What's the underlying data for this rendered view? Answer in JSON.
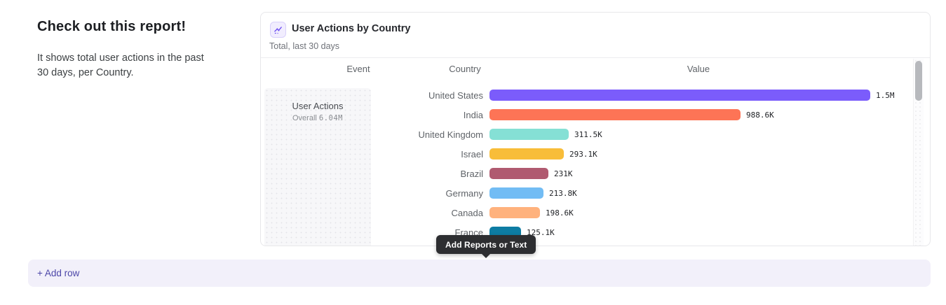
{
  "intro": {
    "title": "Check out this report!",
    "description": "It shows total user actions in the past 30 days, per Country."
  },
  "report_card": {
    "title": "User Actions by Country",
    "subtitle": "Total, last 30 days",
    "icon": "line-chart-icon",
    "columns": {
      "event": "Event",
      "country": "Country",
      "value": "Value"
    },
    "event_cell": {
      "name": "User Actions",
      "overall_label": "Overall",
      "overall_value": "6.04M"
    },
    "accent_color": "#6c4cf1"
  },
  "chart_data": {
    "type": "bar",
    "orientation": "horizontal",
    "title": "User Actions by Country",
    "subtitle": "Total, last 30 days",
    "categories": [
      "United States",
      "India",
      "United Kingdom",
      "Israel",
      "Brazil",
      "Germany",
      "Canada",
      "France"
    ],
    "values": [
      1500000,
      988600,
      311500,
      293100,
      231000,
      213800,
      198600,
      125100
    ],
    "value_labels": [
      "1.5M",
      "988.6K",
      "311.5K",
      "293.1K",
      "231K",
      "213.8K",
      "198.6K",
      "125.1K"
    ],
    "colors": [
      "#7b5cfb",
      "#fd7456",
      "#85e0d5",
      "#f8bd39",
      "#b05a70",
      "#72bcf4",
      "#ffb27d",
      "#0d7ca3"
    ],
    "xlim": [
      0,
      1500000
    ],
    "grid": false,
    "legend": false
  },
  "tooltip": {
    "label": "Add Reports or Text"
  },
  "footer": {
    "add_row_label": "+ Add row"
  }
}
